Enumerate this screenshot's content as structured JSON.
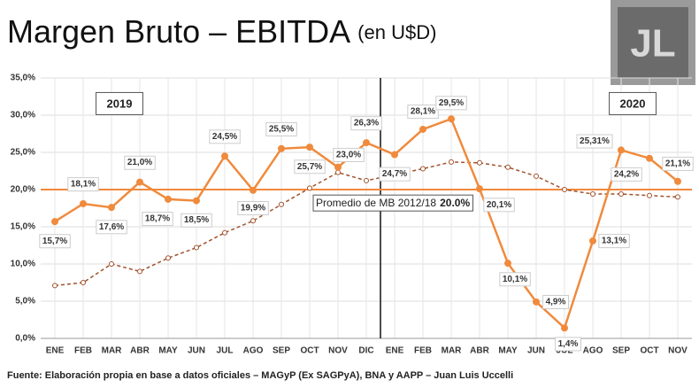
{
  "chart_data": {
    "type": "line",
    "title": "Margen Bruto – EBITDA",
    "subtitle": "(en U$D)",
    "logo": "JL",
    "source": "Fuente: Elaboración propia en base a datos oficiales – MAGyP (Ex SAGPyA), BNA y AAPP – Juan Luis Uccelli",
    "annotations": [
      "2019",
      "2020"
    ],
    "categories": [
      "ENE",
      "FEB",
      "MAR",
      "ABR",
      "MAY",
      "JUN",
      "JUL",
      "AGO",
      "SEP",
      "OCT",
      "NOV",
      "DIC",
      "ENE",
      "FEB",
      "MAR",
      "ABR",
      "MAY",
      "JUN",
      "JUL",
      "AGO",
      "SEP",
      "OCT",
      "NOV"
    ],
    "series": [
      {
        "color": "#f08a3c",
        "values": [
          15.7,
          18.1,
          17.6,
          21.0,
          18.7,
          18.5,
          24.5,
          19.9,
          25.5,
          25.7,
          23.0,
          26.3,
          24.7,
          28.1,
          29.5,
          20.1,
          10.1,
          4.9,
          1.4,
          13.1,
          25.31,
          24.2,
          21.1
        ],
        "value_labels": [
          "15,7%",
          "18,1%",
          "17,6%",
          "21,0%",
          "18,7%",
          "18,5%",
          "24,5%",
          "19,9%",
          "25,5%",
          "25,7%",
          "23,0%",
          "26,3%",
          "24,7%",
          "28,1%",
          "29,5%",
          "20,1%",
          "10,1%",
          "4,9%",
          "1,4%",
          "13,1%",
          "25,31%",
          "24,2%",
          "21,1%"
        ]
      },
      {
        "color": "#a0522d",
        "dashed": true,
        "values": [
          7.1,
          7.5,
          10.0,
          9.0,
          10.8,
          12.2,
          14.2,
          15.8,
          18.0,
          20.2,
          22.3,
          21.2,
          22.0,
          22.8,
          23.7,
          23.6,
          23.0,
          21.8,
          20.0,
          19.4,
          19.4,
          19.2,
          19.0
        ]
      }
    ],
    "reference": {
      "value": 20,
      "label": "Promedio de MB 2012/18",
      "value_label": "20.0%",
      "color": "#f08a3c"
    },
    "ylim": [
      0,
      35
    ],
    "yticks": [
      {
        "value": 0,
        "label": "0,0%"
      },
      {
        "value": 5,
        "label": "5,0%"
      },
      {
        "value": 10,
        "label": "10,0%"
      },
      {
        "value": 15,
        "label": "15,0%"
      },
      {
        "value": 20,
        "label": "20,0%"
      },
      {
        "value": 25,
        "label": "25,0%"
      },
      {
        "value": 30,
        "label": "30,0%"
      },
      {
        "value": 35,
        "label": "35,0%"
      }
    ],
    "grid": true
  }
}
